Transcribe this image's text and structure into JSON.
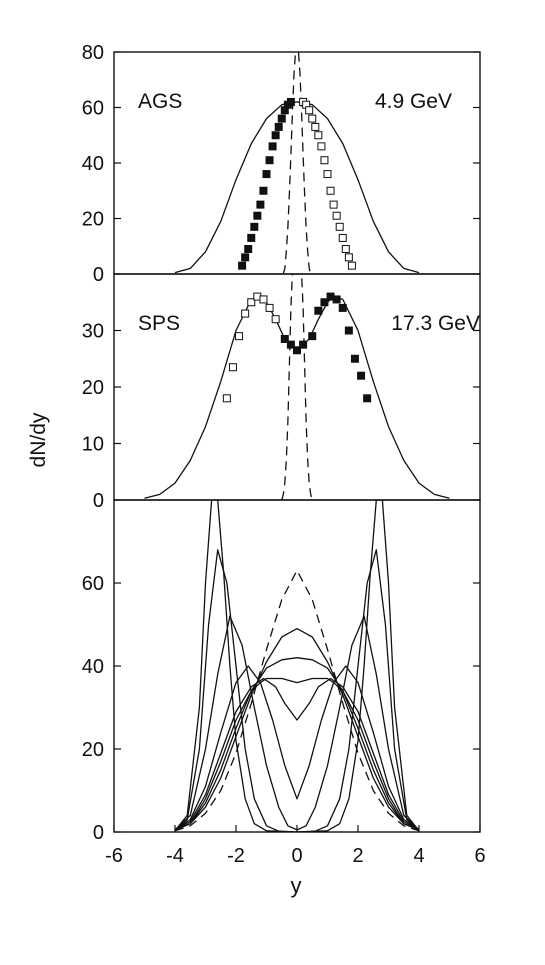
{
  "figure": {
    "ylabel": "dN/dy",
    "xlabel": "y",
    "colors": {
      "ink": "#111111",
      "background": "#ffffff"
    }
  },
  "chart_data": [
    {
      "type": "line",
      "panel": "top",
      "annotations": [
        "AGS",
        "4.9 GeV"
      ],
      "xlim": [
        -6,
        6
      ],
      "ylim": [
        0,
        80
      ],
      "yticks": [
        0,
        20,
        40,
        60,
        80
      ],
      "series": [
        {
          "style": "solid",
          "x": [
            -4.0,
            -3.5,
            -3.0,
            -2.5,
            -2.0,
            -1.5,
            -1.0,
            -0.5,
            0.0,
            0.5,
            1.0,
            1.5,
            2.0,
            2.5,
            3.0,
            3.5,
            4.0
          ],
          "y": [
            0.5,
            2,
            8,
            19,
            34,
            47,
            56,
            61,
            62,
            61,
            56,
            47,
            34,
            19,
            8,
            2,
            0.5
          ]
        },
        {
          "style": "dashed",
          "x": [
            -0.45,
            -0.4,
            -0.35,
            -0.3,
            -0.25,
            -0.2,
            -0.15,
            -0.1,
            -0.05,
            0.0,
            0.05,
            0.1,
            0.15,
            0.2,
            0.25,
            0.3,
            0.35,
            0.4,
            0.45
          ],
          "y": [
            0,
            2,
            8,
            17,
            29,
            43,
            58,
            72,
            80,
            83,
            80,
            72,
            58,
            43,
            29,
            17,
            8,
            2,
            0
          ]
        },
        {
          "style": "markers-filled-squares",
          "x": [
            -1.8,
            -1.7,
            -1.6,
            -1.5,
            -1.4,
            -1.3,
            -1.2,
            -1.1,
            -1.0,
            -0.9,
            -0.8,
            -0.7,
            -0.6,
            -0.5,
            -0.4,
            -0.3,
            -0.2
          ],
          "y": [
            3,
            6,
            9,
            13,
            17,
            21,
            25,
            30,
            36,
            41,
            46,
            50,
            53,
            56,
            59,
            61,
            62
          ]
        },
        {
          "style": "markers-open-squares",
          "x": [
            0.2,
            0.3,
            0.4,
            0.5,
            0.6,
            0.7,
            0.8,
            0.9,
            1.0,
            1.1,
            1.2,
            1.3,
            1.4,
            1.5,
            1.6,
            1.7,
            1.8
          ],
          "y": [
            62,
            61,
            59,
            56,
            53,
            50,
            46,
            41,
            36,
            30,
            25,
            21,
            17,
            13,
            9,
            6,
            3
          ]
        }
      ]
    },
    {
      "type": "line",
      "panel": "middle",
      "annotations": [
        "SPS",
        "17.3 GeV"
      ],
      "xlim": [
        -6,
        6
      ],
      "ylim": [
        0,
        40
      ],
      "yticks": [
        0,
        10,
        20,
        30
      ],
      "series": [
        {
          "style": "solid",
          "x": [
            -5.0,
            -4.5,
            -4.0,
            -3.5,
            -3.0,
            -2.5,
            -2.0,
            -1.5,
            -1.2,
            -1.0,
            -0.7,
            -0.4,
            0.0,
            0.4,
            0.7,
            1.0,
            1.2,
            1.5,
            2.0,
            2.5,
            3.0,
            3.5,
            4.0,
            4.5,
            5.0
          ],
          "y": [
            0.3,
            1,
            3,
            7,
            13,
            21,
            30,
            35.5,
            36,
            35,
            32,
            28.5,
            26.5,
            28.5,
            32,
            35,
            36,
            35.5,
            30,
            21,
            13,
            7,
            3,
            1,
            0.3
          ]
        },
        {
          "style": "dashed",
          "x": [
            -0.5,
            -0.45,
            -0.4,
            -0.35,
            -0.3,
            -0.25,
            -0.2,
            -0.15,
            0.15,
            0.2,
            0.25,
            0.3,
            0.35,
            0.4,
            0.45,
            0.5
          ],
          "y": [
            0,
            1,
            3,
            7,
            14,
            24,
            34,
            40,
            40,
            34,
            24,
            14,
            7,
            3,
            1,
            0
          ]
        },
        {
          "style": "markers-open-squares",
          "x": [
            -2.3,
            -2.1,
            -1.9,
            -1.7,
            -1.5,
            -1.3,
            -1.1,
            -0.9,
            -0.7
          ],
          "y": [
            18,
            23.5,
            29,
            33,
            35,
            36,
            35.5,
            34,
            32
          ]
        },
        {
          "style": "markers-filled-squares",
          "x": [
            -0.4,
            -0.2,
            0.0,
            0.2,
            0.5,
            0.7,
            0.9,
            1.1,
            1.3,
            1.5,
            1.7,
            1.9,
            2.1,
            2.3
          ],
          "y": [
            28.5,
            27.5,
            26.5,
            27.5,
            29,
            33.5,
            35,
            36,
            35.5,
            34,
            30,
            25,
            22,
            18
          ]
        }
      ]
    },
    {
      "type": "line",
      "panel": "bottom",
      "xlim": [
        -6,
        6
      ],
      "ylim": [
        0,
        80
      ],
      "xticks": [
        -6,
        -4,
        -2,
        0,
        2,
        4,
        6
      ],
      "yticks": [
        0,
        20,
        40,
        60
      ],
      "series": [
        {
          "style": "dashed",
          "x": [
            -4.0,
            -3.5,
            -3.0,
            -2.5,
            -2.0,
            -1.5,
            -1.0,
            -0.5,
            0.0,
            0.5,
            1.0,
            1.5,
            2.0,
            2.5,
            3.0,
            3.5,
            4.0
          ],
          "y": [
            0.3,
            1.5,
            4.5,
            10,
            19,
            31,
            44,
            56,
            63,
            56,
            44,
            31,
            19,
            10,
            4.5,
            1.5,
            0.3
          ]
        },
        {
          "style": "solid",
          "x": [
            -4.0,
            -3.5,
            -3.0,
            -2.5,
            -2.0,
            -1.5,
            -1.0,
            -0.5,
            0.0,
            0.5,
            1.0,
            1.5,
            2.0,
            2.5,
            3.0,
            3.5,
            4.0
          ],
          "y": [
            0.5,
            2,
            6,
            13,
            23,
            33,
            41,
            47,
            49,
            47,
            41,
            33,
            23,
            13,
            6,
            2,
            0.5
          ]
        },
        {
          "style": "solid",
          "x": [
            -4.0,
            -3.5,
            -3.0,
            -2.5,
            -2.0,
            -1.5,
            -1.0,
            -0.5,
            0.0,
            0.5,
            1.0,
            1.5,
            2.0,
            2.5,
            3.0,
            3.5,
            4.0
          ],
          "y": [
            0.5,
            2,
            7,
            15,
            25,
            34,
            39.5,
            41.5,
            42,
            41.5,
            39.5,
            34,
            25,
            15,
            7,
            2,
            0.5
          ]
        },
        {
          "style": "solid",
          "x": [
            -4.0,
            -3.5,
            -3.0,
            -2.5,
            -2.0,
            -1.5,
            -1.2,
            -1.0,
            -0.5,
            0.0,
            0.5,
            1.0,
            1.2,
            1.5,
            2.0,
            2.5,
            3.0,
            3.5,
            4.0
          ],
          "y": [
            0.5,
            2,
            8,
            17,
            27,
            34,
            36,
            37,
            37,
            36,
            37,
            37,
            36,
            34,
            27,
            17,
            8,
            2,
            0.5
          ]
        },
        {
          "style": "solid",
          "x": [
            -4.0,
            -3.5,
            -3.0,
            -2.5,
            -2.0,
            -1.5,
            -1.1,
            -0.7,
            -0.4,
            0.0,
            0.4,
            0.7,
            1.1,
            1.5,
            2.0,
            2.5,
            3.0,
            3.5,
            4.0
          ],
          "y": [
            0.5,
            2.5,
            9,
            19,
            29,
            35,
            37,
            35,
            31,
            27,
            31,
            35,
            37,
            35,
            29,
            19,
            9,
            2.5,
            0.5
          ]
        },
        {
          "style": "solid",
          "x": [
            -4.0,
            -3.5,
            -3.0,
            -2.5,
            -2.0,
            -1.6,
            -1.2,
            -0.8,
            -0.4,
            0.0,
            0.4,
            0.8,
            1.2,
            1.6,
            2.0,
            2.5,
            3.0,
            3.5,
            4.0
          ],
          "y": [
            0.5,
            3,
            11,
            24,
            36,
            40,
            36,
            27,
            16,
            8,
            16,
            27,
            36,
            40,
            36,
            24,
            11,
            3,
            0.5
          ]
        },
        {
          "style": "solid",
          "x": [
            -4.0,
            -3.5,
            -3.0,
            -2.6,
            -2.2,
            -1.8,
            -1.4,
            -1.0,
            -0.6,
            -0.3,
            0.0,
            0.3,
            0.6,
            1.0,
            1.4,
            1.8,
            2.2,
            2.6,
            3.0,
            3.5,
            4.0
          ],
          "y": [
            0.5,
            4,
            20,
            38,
            52,
            45,
            30,
            16,
            6,
            1.5,
            0.5,
            1.5,
            6,
            16,
            30,
            45,
            52,
            38,
            20,
            4,
            0.5
          ]
        },
        {
          "style": "solid",
          "x": [
            -4.0,
            -3.6,
            -3.2,
            -2.9,
            -2.6,
            -2.3,
            -2.0,
            -1.7,
            -1.4,
            -1.0,
            -0.6,
            0.0,
            0.6,
            1.0,
            1.4,
            1.7,
            2.0,
            2.3,
            2.6,
            2.9,
            3.2,
            3.6,
            4.0
          ],
          "y": [
            0.3,
            3,
            20,
            50,
            68,
            60,
            40,
            20,
            8,
            1.5,
            0.2,
            0,
            0.2,
            1.5,
            8,
            20,
            40,
            60,
            68,
            50,
            20,
            3,
            0.3
          ]
        },
        {
          "style": "solid",
          "x": [
            -4.0,
            -3.6,
            -3.2,
            -3.0,
            -2.8,
            -2.6,
            -2.4,
            -2.2,
            -2.0,
            -1.7,
            -1.4,
            -1.0,
            0.0,
            1.0,
            1.4,
            1.7,
            2.0,
            2.2,
            2.4,
            2.6,
            2.8,
            3.0,
            3.2,
            3.6,
            4.0
          ],
          "y": [
            0.3,
            4,
            30,
            60,
            80,
            80,
            62,
            40,
            22,
            8,
            2,
            0.3,
            0,
            0.3,
            2,
            8,
            22,
            40,
            62,
            80,
            80,
            60,
            30,
            4,
            0.3
          ]
        }
      ]
    }
  ]
}
